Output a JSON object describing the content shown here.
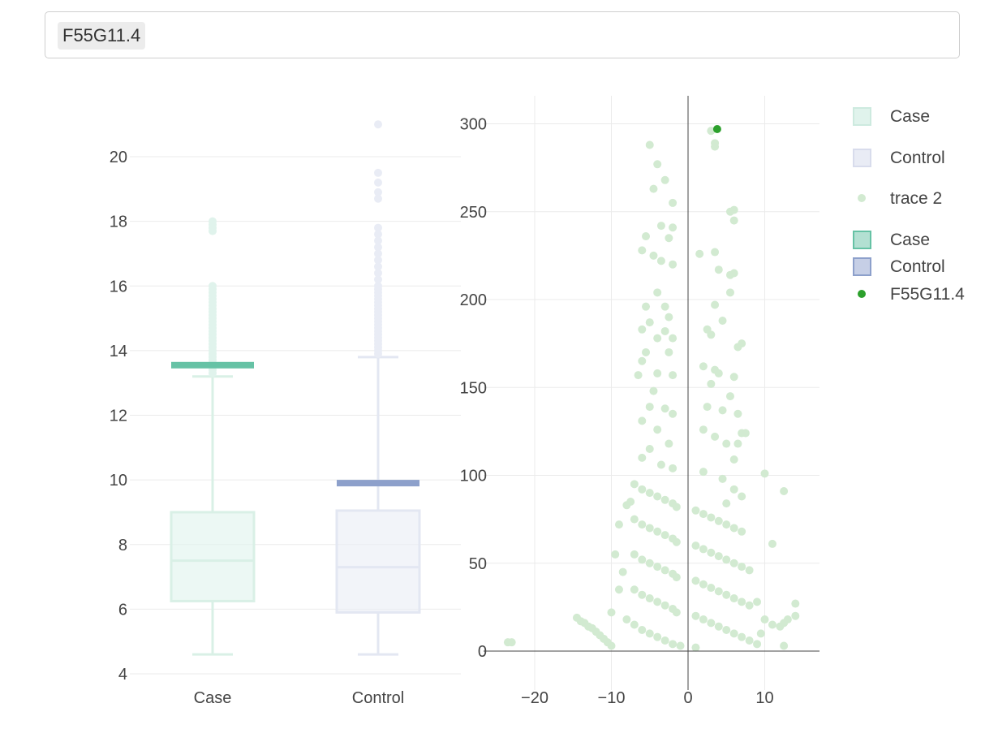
{
  "search": {
    "selected_token": "F55G11.4"
  },
  "chart_data": [
    {
      "type": "box",
      "categories": [
        "Case",
        "Control"
      ],
      "ylim": [
        4,
        21.5
      ],
      "yticks": [
        4,
        6,
        8,
        10,
        12,
        14,
        16,
        18,
        20
      ],
      "grid": true,
      "series": [
        {
          "name": "Case",
          "color": "#e0f3ec",
          "q1": 6.25,
          "median": 7.5,
          "q3": 9.0,
          "whisker_low": 4.6,
          "whisker_high": 13.2,
          "outliers": [
            13.3,
            13.4,
            13.5,
            13.6,
            13.7,
            13.8,
            13.9,
            14.0,
            14.1,
            14.2,
            14.3,
            14.4,
            14.5,
            14.6,
            14.7,
            14.8,
            14.9,
            15.0,
            15.1,
            15.2,
            15.3,
            15.4,
            15.5,
            15.6,
            15.7,
            15.8,
            15.9,
            16.0,
            17.7,
            17.8,
            17.9,
            18.0
          ]
        },
        {
          "name": "Control",
          "color": "#e9ecf5",
          "q1": 5.9,
          "median": 7.3,
          "q3": 9.05,
          "whisker_low": 4.6,
          "whisker_high": 13.8,
          "outliers": [
            13.9,
            14.0,
            14.1,
            14.2,
            14.3,
            14.4,
            14.5,
            14.6,
            14.7,
            14.8,
            14.9,
            15.0,
            15.1,
            15.2,
            15.3,
            15.4,
            15.5,
            15.6,
            15.7,
            15.8,
            15.9,
            16.0,
            16.2,
            16.4,
            16.6,
            16.8,
            17.0,
            17.2,
            17.4,
            17.6,
            17.8,
            18.7,
            18.9,
            19.2,
            19.5,
            21.0
          ]
        }
      ],
      "highlight": [
        {
          "name": "Case",
          "color": "#66c2a5",
          "value": 13.55
        },
        {
          "name": "Control",
          "color": "#8da0cb",
          "value": 9.9
        }
      ]
    },
    {
      "type": "scatter",
      "xlim": [
        -25,
        17
      ],
      "ylim": [
        -20,
        316
      ],
      "xticks": [
        -20,
        -10,
        0,
        10
      ],
      "yticks": [
        0,
        50,
        100,
        150,
        200,
        250,
        300
      ],
      "grid": true,
      "series": [
        {
          "name": "trace 2",
          "color": "#d2ead1",
          "points": [
            [
              -23.5,
              5
            ],
            [
              -23,
              5
            ],
            [
              -14.5,
              19
            ],
            [
              -14,
              17
            ],
            [
              -13.5,
              16
            ],
            [
              -13,
              14
            ],
            [
              -12.5,
              13
            ],
            [
              -12,
              11
            ],
            [
              -11.5,
              9
            ],
            [
              -11,
              7
            ],
            [
              -10.5,
              5
            ],
            [
              -10,
              3
            ],
            [
              -5,
              288
            ],
            [
              -4,
              277
            ],
            [
              -3,
              268
            ],
            [
              -2,
              255
            ],
            [
              -4.5,
              263
            ],
            [
              -3.5,
              242
            ],
            [
              -2,
              241
            ],
            [
              -2.5,
              235
            ],
            [
              -5.5,
              236
            ],
            [
              -6,
              228
            ],
            [
              -4.5,
              225
            ],
            [
              -3.5,
              222
            ],
            [
              -2,
              220
            ],
            [
              -4,
              204
            ],
            [
              -5.5,
              196
            ],
            [
              -3,
              196
            ],
            [
              -2.5,
              190
            ],
            [
              -5,
              187
            ],
            [
              -6,
              183
            ],
            [
              -3,
              182
            ],
            [
              -4,
              178
            ],
            [
              -2,
              178
            ],
            [
              -5.5,
              170
            ],
            [
              -2.5,
              170
            ],
            [
              -6,
              165
            ],
            [
              -4,
              158
            ],
            [
              -6.5,
              157
            ],
            [
              -2,
              157
            ],
            [
              -4.5,
              148
            ],
            [
              -5,
              139
            ],
            [
              -3,
              138
            ],
            [
              -2,
              135
            ],
            [
              -6,
              131
            ],
            [
              -4,
              126
            ],
            [
              -2.5,
              118
            ],
            [
              -5,
              115
            ],
            [
              -6,
              110
            ],
            [
              -3.5,
              106
            ],
            [
              -2,
              104
            ],
            [
              -7.5,
              85
            ],
            [
              -8,
              83
            ],
            [
              -9,
              72
            ],
            [
              -9.5,
              55
            ],
            [
              -8.5,
              45
            ],
            [
              -9,
              35
            ],
            [
              -10,
              22
            ],
            [
              -8,
              18
            ],
            [
              -7,
              95
            ],
            [
              -6,
              92
            ],
            [
              -5,
              90
            ],
            [
              -4,
              88
            ],
            [
              -3,
              86
            ],
            [
              -2,
              84
            ],
            [
              -1.5,
              82
            ],
            [
              -7,
              75
            ],
            [
              -6,
              72
            ],
            [
              -5,
              70
            ],
            [
              -4,
              68
            ],
            [
              -3,
              66
            ],
            [
              -2,
              64
            ],
            [
              -1.5,
              62
            ],
            [
              -7,
              55
            ],
            [
              -6,
              52
            ],
            [
              -5,
              50
            ],
            [
              -4,
              48
            ],
            [
              -3,
              46
            ],
            [
              -2,
              44
            ],
            [
              -1.5,
              42
            ],
            [
              -7,
              35
            ],
            [
              -6,
              32
            ],
            [
              -5,
              30
            ],
            [
              -4,
              28
            ],
            [
              -3,
              26
            ],
            [
              -2,
              24
            ],
            [
              -1.5,
              22
            ],
            [
              -7,
              15
            ],
            [
              -6,
              12
            ],
            [
              -5,
              10
            ],
            [
              -4,
              8
            ],
            [
              -3,
              6
            ],
            [
              -2,
              4
            ],
            [
              -1,
              3
            ],
            [
              3,
              296
            ],
            [
              3.5,
              289
            ],
            [
              3.5,
              287
            ],
            [
              6,
              251
            ],
            [
              5.5,
              250
            ],
            [
              6,
              245
            ],
            [
              1.5,
              226
            ],
            [
              3.5,
              227
            ],
            [
              4,
              217
            ],
            [
              6,
              215
            ],
            [
              5.5,
              214
            ],
            [
              5.5,
              204
            ],
            [
              3.5,
              197
            ],
            [
              4.5,
              188
            ],
            [
              2.5,
              183
            ],
            [
              3,
              180
            ],
            [
              7,
              175
            ],
            [
              6.5,
              173
            ],
            [
              2,
              162
            ],
            [
              3.5,
              160
            ],
            [
              4,
              158
            ],
            [
              6,
              156
            ],
            [
              3,
              152
            ],
            [
              5.5,
              145
            ],
            [
              2.5,
              139
            ],
            [
              4.5,
              137
            ],
            [
              6.5,
              135
            ],
            [
              2,
              126
            ],
            [
              3.5,
              122
            ],
            [
              5,
              118
            ],
            [
              7,
              124
            ],
            [
              7.5,
              124
            ],
            [
              6.5,
              118
            ],
            [
              6,
              109
            ],
            [
              2,
              102
            ],
            [
              4.5,
              98
            ],
            [
              6,
              92
            ],
            [
              7,
              88
            ],
            [
              5,
              84
            ],
            [
              1,
              80
            ],
            [
              2,
              78
            ],
            [
              3,
              76
            ],
            [
              4,
              74
            ],
            [
              5,
              72
            ],
            [
              6,
              70
            ],
            [
              7,
              68
            ],
            [
              1,
              60
            ],
            [
              2,
              58
            ],
            [
              3,
              56
            ],
            [
              4,
              54
            ],
            [
              5,
              52
            ],
            [
              6,
              50
            ],
            [
              7,
              48
            ],
            [
              8,
              46
            ],
            [
              1,
              40
            ],
            [
              2,
              38
            ],
            [
              3,
              36
            ],
            [
              4,
              34
            ],
            [
              5,
              32
            ],
            [
              6,
              30
            ],
            [
              7,
              28
            ],
            [
              8,
              26
            ],
            [
              1,
              20
            ],
            [
              2,
              18
            ],
            [
              3,
              16
            ],
            [
              4,
              14
            ],
            [
              5,
              12
            ],
            [
              6,
              10
            ],
            [
              7,
              8
            ],
            [
              8,
              6
            ],
            [
              9,
              4
            ],
            [
              1,
              2
            ],
            [
              10,
              101
            ],
            [
              12.5,
              91
            ],
            [
              11,
              61
            ],
            [
              9,
              28
            ],
            [
              10,
              18
            ],
            [
              11,
              15
            ],
            [
              12,
              14
            ],
            [
              12.5,
              16
            ],
            [
              13,
              18
            ],
            [
              14,
              27
            ],
            [
              14,
              20
            ],
            [
              12.5,
              3
            ],
            [
              9.5,
              10
            ]
          ]
        },
        {
          "name": "F55G11.4",
          "color": "#2ca02c",
          "points": [
            [
              3.8,
              297
            ]
          ]
        }
      ]
    }
  ],
  "legend": {
    "position": "right",
    "items": [
      {
        "label": "Case",
        "kind": "box-light",
        "color": "#e0f3ec",
        "stroke": "#cdeadf"
      },
      {
        "label": "Control",
        "kind": "box-light",
        "color": "#e9ecf5",
        "stroke": "#d8dcec"
      },
      {
        "label": "trace 2",
        "kind": "dot",
        "color": "#d2ead1"
      },
      {
        "label": "Case",
        "kind": "box",
        "color": "#b3e0d2",
        "stroke": "#66c2a5"
      },
      {
        "label": "Control",
        "kind": "box",
        "color": "#c6cfe6",
        "stroke": "#8da0cb"
      },
      {
        "label": "F55G11.4",
        "kind": "dot",
        "color": "#2ca02c"
      }
    ]
  }
}
